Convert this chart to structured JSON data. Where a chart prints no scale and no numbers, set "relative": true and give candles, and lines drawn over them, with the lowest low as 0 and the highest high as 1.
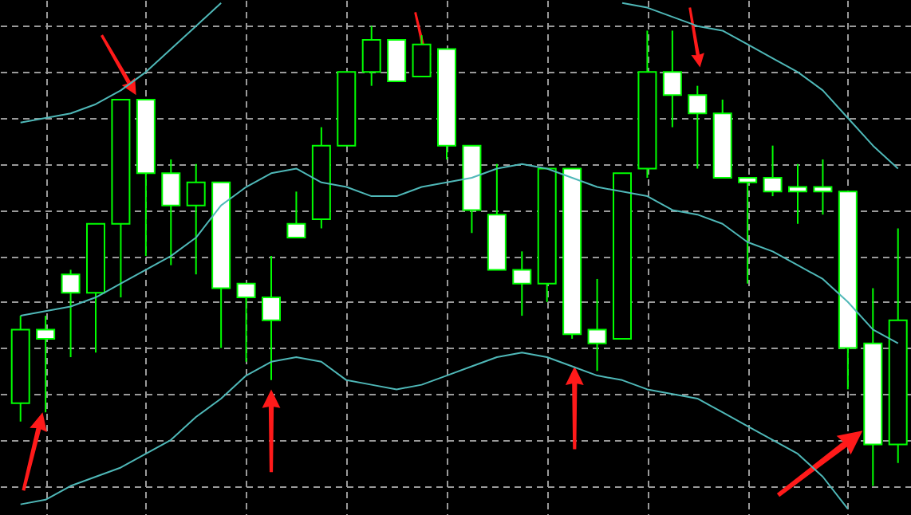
{
  "chart_data": {
    "type": "candlestick",
    "relative": true,
    "grid": true,
    "tick_labels": false,
    "categories": [
      null,
      null,
      null,
      null,
      null,
      null,
      null,
      null,
      null,
      null,
      null,
      null,
      null,
      null,
      null,
      null,
      null,
      null,
      null,
      null,
      null,
      null,
      null,
      null,
      null,
      null,
      null,
      null,
      null,
      null,
      null,
      null,
      null,
      null,
      null,
      null
    ],
    "ohlc": [
      [
        0.18,
        0.37,
        0.14,
        0.34
      ],
      [
        0.34,
        0.37,
        0.16,
        0.32
      ],
      [
        0.46,
        0.47,
        0.28,
        0.42
      ],
      [
        0.42,
        0.57,
        0.29,
        0.57
      ],
      [
        0.57,
        0.84,
        0.41,
        0.84
      ],
      [
        0.84,
        0.84,
        0.5,
        0.68
      ],
      [
        0.68,
        0.71,
        0.48,
        0.61
      ],
      [
        0.61,
        0.7,
        0.46,
        0.66
      ],
      [
        0.66,
        0.66,
        0.3,
        0.43
      ],
      [
        0.44,
        0.44,
        0.27,
        0.41
      ],
      [
        0.41,
        0.5,
        0.23,
        0.36
      ],
      [
        0.57,
        0.64,
        0.54,
        0.54
      ],
      [
        0.58,
        0.78,
        0.56,
        0.74
      ],
      [
        0.74,
        0.9,
        0.74,
        0.9
      ],
      [
        0.9,
        1.0,
        0.87,
        0.97
      ],
      [
        0.97,
        0.97,
        0.88,
        0.88
      ],
      [
        0.89,
        0.98,
        0.89,
        0.96
      ],
      [
        0.95,
        0.95,
        0.71,
        0.74
      ],
      [
        0.74,
        0.74,
        0.55,
        0.6
      ],
      [
        0.59,
        0.7,
        0.47,
        0.47
      ],
      [
        0.47,
        0.51,
        0.37,
        0.44
      ],
      [
        0.44,
        0.69,
        0.4,
        0.69
      ],
      [
        0.69,
        0.69,
        0.32,
        0.33
      ],
      [
        0.34,
        0.45,
        0.25,
        0.31
      ],
      [
        0.32,
        0.68,
        0.32,
        0.68
      ],
      [
        0.69,
        0.99,
        0.67,
        0.9
      ],
      [
        0.9,
        0.99,
        0.78,
        0.85
      ],
      [
        0.85,
        0.87,
        0.69,
        0.81
      ],
      [
        0.81,
        0.84,
        0.67,
        0.67
      ],
      [
        0.67,
        0.67,
        0.44,
        0.66
      ],
      [
        0.67,
        0.74,
        0.63,
        0.64
      ],
      [
        0.65,
        0.7,
        0.57,
        0.64
      ],
      [
        0.65,
        0.71,
        0.59,
        0.64
      ],
      [
        0.64,
        0.64,
        0.21,
        0.3
      ],
      [
        0.31,
        0.43,
        0.0,
        0.09
      ],
      [
        0.09,
        0.56,
        0.05,
        0.36
      ]
    ],
    "series": [
      {
        "type": "line",
        "color": "#4fb8b8",
        "values": [
          0.79,
          0.8,
          0.81,
          0.83,
          0.86,
          0.9,
          0.95,
          1.0,
          1.05,
          null,
          null,
          null,
          null,
          null,
          null,
          null,
          null,
          null,
          null,
          null,
          null,
          null,
          null,
          null,
          1.05,
          1.04,
          1.02,
          1.0,
          0.99,
          0.96,
          0.93,
          0.9,
          0.86,
          0.8,
          0.74,
          0.69
        ]
      },
      {
        "type": "line",
        "color": "#4fb8b8",
        "values": [
          0.37,
          0.38,
          0.39,
          0.41,
          0.44,
          0.47,
          0.5,
          0.54,
          0.61,
          0.65,
          0.68,
          0.69,
          0.66,
          0.65,
          0.63,
          0.63,
          0.65,
          0.66,
          0.67,
          0.69,
          0.7,
          0.69,
          0.67,
          0.65,
          0.64,
          0.63,
          0.6,
          0.59,
          0.57,
          0.53,
          0.51,
          0.48,
          0.45,
          0.4,
          0.34,
          0.31
        ]
      },
      {
        "type": "line",
        "color": "#4fb8b8",
        "values": [
          -0.04,
          -0.03,
          0.0,
          0.02,
          0.04,
          0.07,
          0.1,
          0.15,
          0.19,
          0.24,
          0.27,
          0.28,
          0.27,
          0.23,
          0.22,
          0.21,
          0.22,
          0.24,
          0.26,
          0.28,
          0.29,
          0.28,
          0.26,
          0.24,
          0.23,
          0.21,
          0.2,
          0.19,
          0.16,
          0.13,
          0.1,
          0.07,
          0.02,
          -0.05,
          null,
          null
        ]
      }
    ]
  }
}
